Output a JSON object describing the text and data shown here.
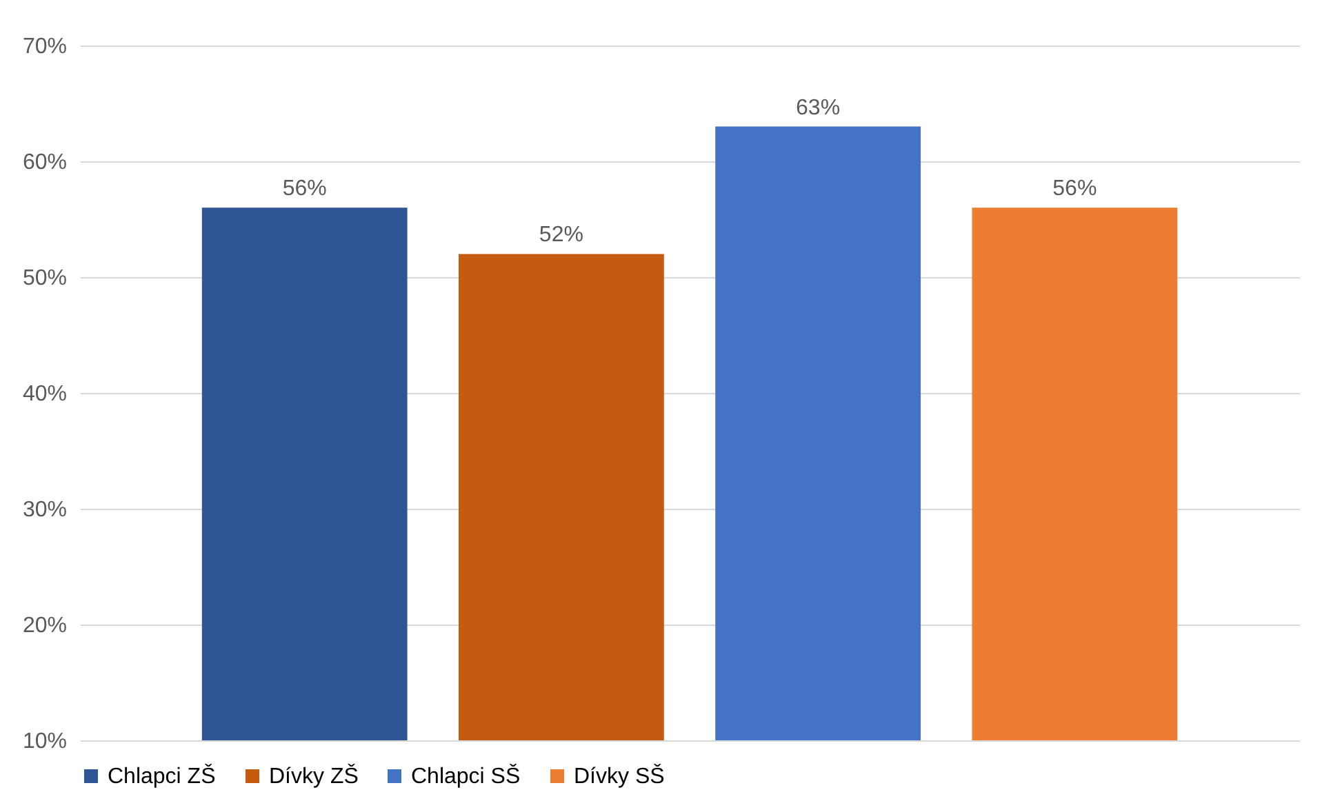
{
  "chart_data": {
    "type": "bar",
    "categories": [
      null
    ],
    "series": [
      {
        "name": "Chlapci ZŠ",
        "color": "#2f5597",
        "values": [
          56
        ],
        "value_labels": [
          "56%"
        ]
      },
      {
        "name": "Dívky ZŠ",
        "color": "#c55a11",
        "values": [
          52
        ],
        "value_labels": [
          "52%"
        ]
      },
      {
        "name": "Chlapci SŠ",
        "color": "#4472c4",
        "values": [
          63
        ],
        "value_labels": [
          "63%"
        ]
      },
      {
        "name": "Dívky SŠ",
        "color": "#ed7d31",
        "values": [
          56
        ],
        "value_labels": [
          "56%"
        ]
      }
    ],
    "ylim": [
      10,
      70
    ],
    "yticks": [
      {
        "value": 10,
        "label": "10%"
      },
      {
        "value": 20,
        "label": "20%"
      },
      {
        "value": 30,
        "label": "30%"
      },
      {
        "value": 40,
        "label": "40%"
      },
      {
        "value": 50,
        "label": "50%"
      },
      {
        "value": 60,
        "label": "60%"
      },
      {
        "value": 70,
        "label": "70%"
      }
    ],
    "grid": "y",
    "legend": "bottom"
  }
}
